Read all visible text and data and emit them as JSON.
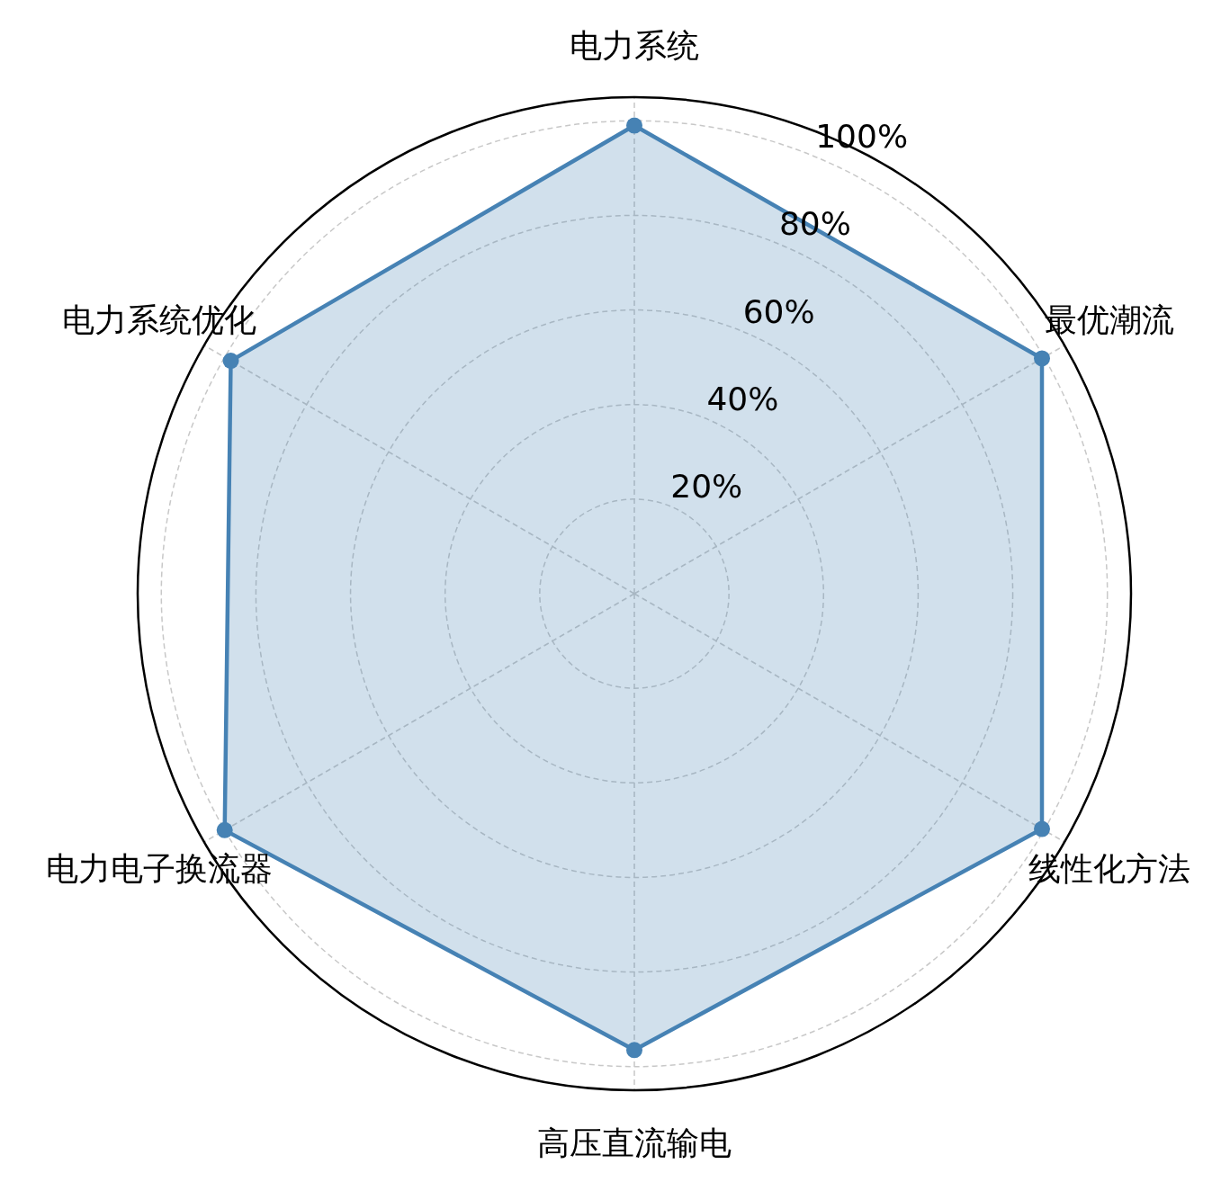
{
  "chart_data": {
    "type": "radar",
    "categories": [
      "电力系统",
      "最优潮流",
      "线性化方法",
      "高压直流输电",
      "电力电子换流器",
      "电力系统优化"
    ],
    "series": [
      {
        "color": "#4682b4",
        "values": [
          99,
          99.5,
          99.5,
          96.5,
          100,
          98.5
        ]
      }
    ],
    "ylim": [
      0,
      105
    ],
    "yticks": [
      {
        "value": 20,
        "label": "20%"
      },
      {
        "value": 40,
        "label": "40%"
      },
      {
        "value": 60,
        "label": "60%"
      },
      {
        "value": 80,
        "label": "80%"
      },
      {
        "value": 100,
        "label": "100%"
      }
    ],
    "grid": true,
    "marker": "circle",
    "line_style": "solid"
  }
}
